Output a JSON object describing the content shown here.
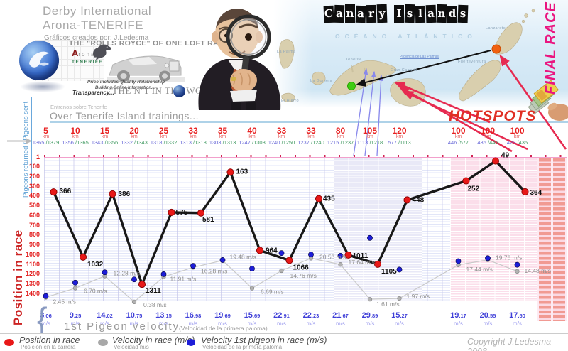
{
  "header": {
    "title_line1": "Derby International",
    "title_line2": "Arona-TENERIFE",
    "credit": "Gráficos creados por: J.Ledesma",
    "banner_title": "THE \"ROLLS ROYCE\" OF ONE LOFT RACES!",
    "brand_a": "A",
    "brand_top": "rona",
    "brand_bottom": "TENERIFE",
    "slogan1": "Price includes-Quality Relationship",
    "slogan2": "Building Online Information...",
    "slogan3": "Transparency...",
    "slogan4": "THE Nº1 IN THE WORLD"
  },
  "map": {
    "title": "Canary Islands",
    "ocean": "OCÉANO ATLÁNTICO",
    "province": "Provincia de Las Palmas",
    "islands": {
      "la_palma": "La Palma",
      "la_gomera": "La Gomera",
      "el_hierro": "El Hierro",
      "tenerife": "Tenerife",
      "gran_canaria": "Gran Canaria",
      "fuerteventura": "Fuerteventura",
      "lanzarote": "Lanzarote"
    },
    "hotspots": "HOTSPOTS",
    "final_race": "FINAL RACE"
  },
  "left_axis": {
    "pigeons_label": "Pigeons returned / Pigeons sent",
    "position_label": "Position in race"
  },
  "trainings": {
    "title_es": "Entrenos sobre Tenerife",
    "title_en": "Over Tenerife Island trainings..."
  },
  "chart_data": {
    "type": "line",
    "title": "Over Tenerife Island trainings...",
    "y_axis_inverted": true,
    "y_axis_ticks": [
      1,
      100,
      200,
      300,
      400,
      500,
      600,
      700,
      800,
      900,
      1000,
      1100,
      1200,
      1300,
      1400
    ],
    "km_unit": "km",
    "velocity_unit": "m/s",
    "gap_before_stage": 13,
    "stages": [
      {
        "km": "5",
        "returned": "1365",
        "sent": "/1379",
        "position": 366,
        "race_velocity": "2.45",
        "first_velocity": "3.06"
      },
      {
        "km": "10",
        "returned": "1356",
        "sent": "/1365",
        "position": 1032,
        "race_velocity": "6.70",
        "first_velocity": "9.25"
      },
      {
        "km": "15",
        "returned": "1343",
        "sent": "/1356",
        "position": 386,
        "race_velocity": "12.28",
        "first_velocity": "14.02"
      },
      {
        "km": "20",
        "returned": "1332",
        "sent": "/1343",
        "position": 1311,
        "race_velocity": "0.38",
        "first_velocity": "10.75"
      },
      {
        "km": "25",
        "returned": "1318",
        "sent": "/1332",
        "position": 575,
        "race_velocity": "11.91",
        "first_velocity": "13.15"
      },
      {
        "km": "33",
        "returned": "1313",
        "sent": "/1318",
        "position": 581,
        "race_velocity": "16.28",
        "first_velocity": "16.98"
      },
      {
        "km": "35",
        "returned": "1303",
        "sent": "/1313",
        "position": 163,
        "race_velocity": "19.48",
        "first_velocity": "19.69"
      },
      {
        "km": "40",
        "returned": "1247",
        "sent": "/1303",
        "position": 964,
        "race_velocity": "6.69",
        "first_velocity": "15.69"
      },
      {
        "km": "33",
        "returned": "1240",
        "sent": "/1250",
        "position": 1066,
        "race_velocity": "14.76",
        "first_velocity": "22.91"
      },
      {
        "km": "33",
        "returned": "1237",
        "sent": "/1240",
        "position": 435,
        "race_velocity": "20.53",
        "first_velocity": "22.23"
      },
      {
        "km": "80",
        "returned": "1215",
        "sent": "/1237",
        "position": 1011,
        "race_velocity": "17.64",
        "first_velocity": "21.67"
      },
      {
        "km": "105",
        "returned": "1113",
        "sent": "/1218",
        "position": 1105,
        "race_velocity": "1.61",
        "first_velocity": "29.89"
      },
      {
        "km": "120",
        "returned": "577",
        "sent": "/1113",
        "position": 448,
        "race_velocity": "1.97",
        "first_velocity": "15.27"
      },
      {
        "km": "100",
        "returned": "446",
        "sent": "/577",
        "position": 252,
        "race_velocity": "17.44",
        "first_velocity": "19.17"
      },
      {
        "km": "100",
        "returned": "435",
        "sent": "/446",
        "position": 49,
        "race_velocity": "19.76",
        "first_velocity": "20.55"
      },
      {
        "km": "100",
        "returned": "423",
        "sent": "/435",
        "position": 364,
        "race_velocity": "14.48",
        "first_velocity": "17.50"
      }
    ]
  },
  "footer": {
    "brace": "{",
    "first_pigeon_title": "1st Pigeon velocity",
    "first_pigeon_sub": "(Velocidad de la primera paloma)",
    "legend": [
      {
        "label": "Position in race",
        "sub": "Posicion en la carrera",
        "color": "#e81818"
      },
      {
        "label": "Velocity in race (m/s)",
        "sub": "Velocidad m/s",
        "color": "#a8a8a8"
      },
      {
        "label": "Velocity 1st pigeon in race (m/s)",
        "sub": "Velocidad de la primera paloma",
        "color": "#1d1dd8"
      }
    ],
    "copyright": "Copyright J.Ledesma 2008"
  },
  "colors": {
    "position_line": "#181818",
    "position_dot": "#e81818",
    "race_velocity_line": "#c9c9c9",
    "first_velocity_dot": "#1d1dd8",
    "axis_red": "#e32222",
    "final_race_pink": "#ea1580",
    "hotspot_red": "#e02f24"
  }
}
